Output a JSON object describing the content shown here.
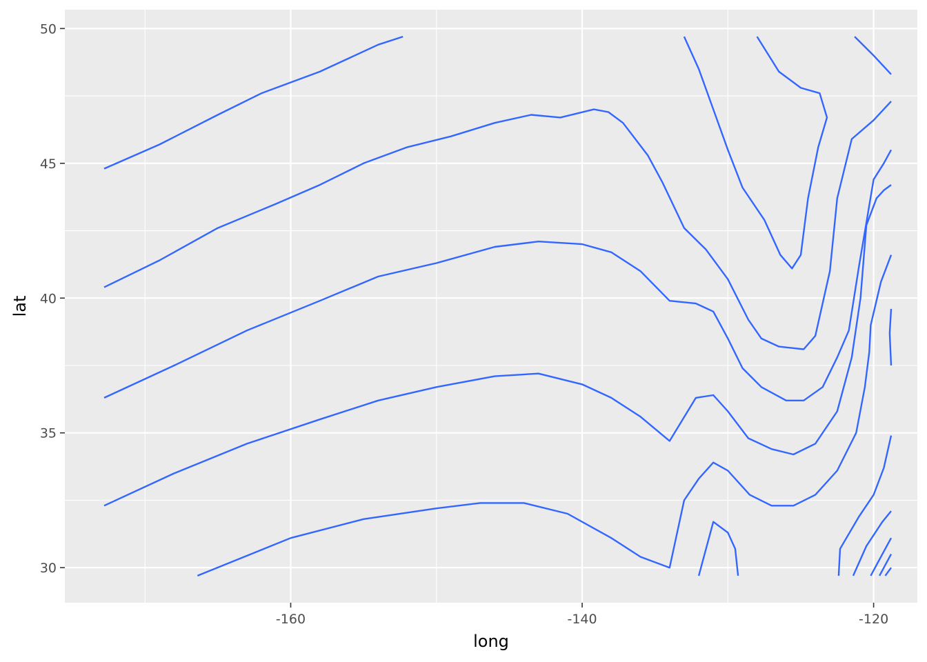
{
  "chart_data": {
    "type": "line",
    "xlabel": "long",
    "ylabel": "lat",
    "xlim": [
      -175.5,
      -117
    ],
    "ylim": [
      28.7,
      50.7
    ],
    "x_ticks": [
      -160,
      -140,
      -120
    ],
    "x_tick_labels": [
      "-160",
      "-140",
      "-120"
    ],
    "y_ticks": [
      30,
      35,
      40,
      45,
      50
    ],
    "y_tick_labels": [
      "30",
      "35",
      "40",
      "45",
      "50"
    ],
    "grid": true,
    "colors": {
      "panel": "#EBEBEB",
      "grid_major": "#FFFFFF",
      "line": "#3366FF",
      "tick_text": "#4D4D4D"
    },
    "series": [
      {
        "values": [
          [
            -172.8,
            44.8
          ],
          [
            -169,
            45.7
          ],
          [
            -165,
            46.8
          ],
          [
            -162,
            47.6
          ],
          [
            -160,
            48.0
          ],
          [
            -158,
            48.4
          ],
          [
            -156,
            48.9
          ],
          [
            -154,
            49.4
          ],
          [
            -152.3,
            49.7
          ]
        ]
      },
      {
        "values": [
          [
            -172.8,
            40.4
          ],
          [
            -169,
            41.4
          ],
          [
            -165,
            42.6
          ],
          [
            -161,
            43.5
          ],
          [
            -158,
            44.2
          ],
          [
            -155,
            45.0
          ],
          [
            -152,
            45.6
          ],
          [
            -149,
            46.0
          ],
          [
            -146,
            46.5
          ],
          [
            -143.5,
            46.8
          ],
          [
            -141.5,
            46.7
          ],
          [
            -139.2,
            47.0
          ],
          [
            -138.2,
            46.9
          ],
          [
            -137.2,
            46.5
          ],
          [
            -135.5,
            45.3
          ],
          [
            -134.5,
            44.3
          ],
          [
            -133.0,
            42.6
          ],
          [
            -131.5,
            41.8
          ],
          [
            -130.0,
            40.7
          ],
          [
            -128.6,
            39.2
          ],
          [
            -127.7,
            38.5
          ],
          [
            -126.5,
            38.2
          ],
          [
            -124.8,
            38.1
          ],
          [
            -124.0,
            38.6
          ],
          [
            -123.0,
            41.0
          ],
          [
            -122.5,
            43.7
          ],
          [
            -121.5,
            45.9
          ],
          [
            -120.0,
            46.6
          ],
          [
            -118.8,
            47.3
          ]
        ]
      },
      {
        "values": [
          [
            -172.8,
            36.3
          ],
          [
            -168,
            37.5
          ],
          [
            -163,
            38.8
          ],
          [
            -158,
            39.9
          ],
          [
            -154,
            40.8
          ],
          [
            -150,
            41.3
          ],
          [
            -146,
            41.9
          ],
          [
            -143,
            42.1
          ],
          [
            -140,
            42.0
          ],
          [
            -138,
            41.7
          ],
          [
            -136,
            41.0
          ],
          [
            -134,
            39.9
          ],
          [
            -132.2,
            39.8
          ],
          [
            -131,
            39.5
          ],
          [
            -130,
            38.5
          ],
          [
            -129,
            37.4
          ],
          [
            -127.7,
            36.7
          ],
          [
            -126,
            36.2
          ],
          [
            -124.8,
            36.2
          ],
          [
            -123.5,
            36.7
          ],
          [
            -122.5,
            37.8
          ],
          [
            -121.7,
            38.8
          ],
          [
            -121.0,
            41.2
          ],
          [
            -120.5,
            42.8
          ],
          [
            -120.0,
            44.4
          ],
          [
            -119.3,
            45.0
          ],
          [
            -118.8,
            45.5
          ]
        ]
      },
      {
        "values": [
          [
            -172.8,
            32.3
          ],
          [
            -168,
            33.5
          ],
          [
            -163,
            34.6
          ],
          [
            -158,
            35.5
          ],
          [
            -154,
            36.2
          ],
          [
            -150,
            36.7
          ],
          [
            -146,
            37.1
          ],
          [
            -143,
            37.2
          ],
          [
            -140,
            36.8
          ],
          [
            -138,
            36.3
          ],
          [
            -136,
            35.6
          ],
          [
            -134,
            34.7
          ],
          [
            -132.2,
            36.3
          ],
          [
            -131,
            36.4
          ],
          [
            -130,
            35.8
          ],
          [
            -128.6,
            34.8
          ],
          [
            -127,
            34.4
          ],
          [
            -125.5,
            34.2
          ],
          [
            -124,
            34.6
          ],
          [
            -122.5,
            35.8
          ],
          [
            -121.5,
            37.8
          ],
          [
            -120.9,
            40.0
          ],
          [
            -120.5,
            42.7
          ],
          [
            -119.8,
            43.7
          ],
          [
            -119.3,
            44.0
          ],
          [
            -118.8,
            44.2
          ]
        ]
      },
      {
        "values": [
          [
            -166.4,
            29.7
          ],
          [
            -160,
            31.1
          ],
          [
            -155,
            31.8
          ],
          [
            -150,
            32.2
          ],
          [
            -147,
            32.4
          ],
          [
            -144,
            32.4
          ],
          [
            -141,
            32.0
          ],
          [
            -138,
            31.1
          ],
          [
            -136,
            30.4
          ],
          [
            -134,
            30.0
          ],
          [
            -133,
            32.5
          ],
          [
            -132,
            33.3
          ],
          [
            -131,
            33.9
          ],
          [
            -130,
            33.6
          ],
          [
            -128.5,
            32.7
          ],
          [
            -127,
            32.3
          ],
          [
            -125.5,
            32.3
          ],
          [
            -124,
            32.7
          ],
          [
            -122.5,
            33.6
          ],
          [
            -121.2,
            35.0
          ],
          [
            -120.6,
            36.7
          ],
          [
            -120.3,
            38.0
          ],
          [
            -120.2,
            39.0
          ],
          [
            -119.5,
            40.6
          ],
          [
            -118.8,
            41.6
          ]
        ]
      },
      {
        "values": [
          [
            -132.0,
            29.7
          ],
          [
            -131.0,
            31.7
          ],
          [
            -130.0,
            31.3
          ],
          [
            -129.5,
            30.7
          ],
          [
            -129.3,
            29.7
          ]
        ]
      },
      {
        "values": [
          [
            -122.4,
            29.7
          ],
          [
            -122.3,
            30.7
          ],
          [
            -121.0,
            31.9
          ],
          [
            -120.0,
            32.7
          ],
          [
            -119.3,
            33.7
          ],
          [
            -118.8,
            34.9
          ]
        ]
      },
      {
        "values": [
          [
            -121.4,
            29.7
          ],
          [
            -120.5,
            30.8
          ],
          [
            -119.4,
            31.7
          ],
          [
            -118.8,
            32.1
          ]
        ]
      },
      {
        "values": [
          [
            -120.2,
            29.7
          ],
          [
            -119.3,
            30.6
          ],
          [
            -118.8,
            31.1
          ]
        ]
      },
      {
        "values": [
          [
            -119.6,
            29.7
          ],
          [
            -118.8,
            30.5
          ]
        ]
      },
      {
        "values": [
          [
            -119.2,
            29.7
          ],
          [
            -118.8,
            30.0
          ]
        ]
      },
      {
        "values": [
          [
            -118.8,
            39.6
          ],
          [
            -118.9,
            38.7
          ],
          [
            -118.8,
            37.5
          ]
        ]
      },
      {
        "values": [
          [
            -128.0,
            49.7
          ],
          [
            -126.5,
            48.4
          ],
          [
            -125,
            47.8
          ],
          [
            -123.7,
            47.6
          ],
          [
            -123.2,
            46.7
          ],
          [
            -123.8,
            45.6
          ],
          [
            -124.5,
            43.7
          ],
          [
            -125.0,
            41.6
          ],
          [
            -125.6,
            41.1
          ],
          [
            -126.4,
            41.6
          ],
          [
            -127.5,
            42.9
          ],
          [
            -129,
            44.1
          ],
          [
            -130,
            45.5
          ],
          [
            -131,
            47.0
          ],
          [
            -132,
            48.5
          ],
          [
            -133,
            49.7
          ]
        ]
      },
      {
        "values": [
          [
            -121.3,
            49.7
          ],
          [
            -120.0,
            49.0
          ],
          [
            -118.8,
            48.3
          ]
        ]
      }
    ]
  }
}
